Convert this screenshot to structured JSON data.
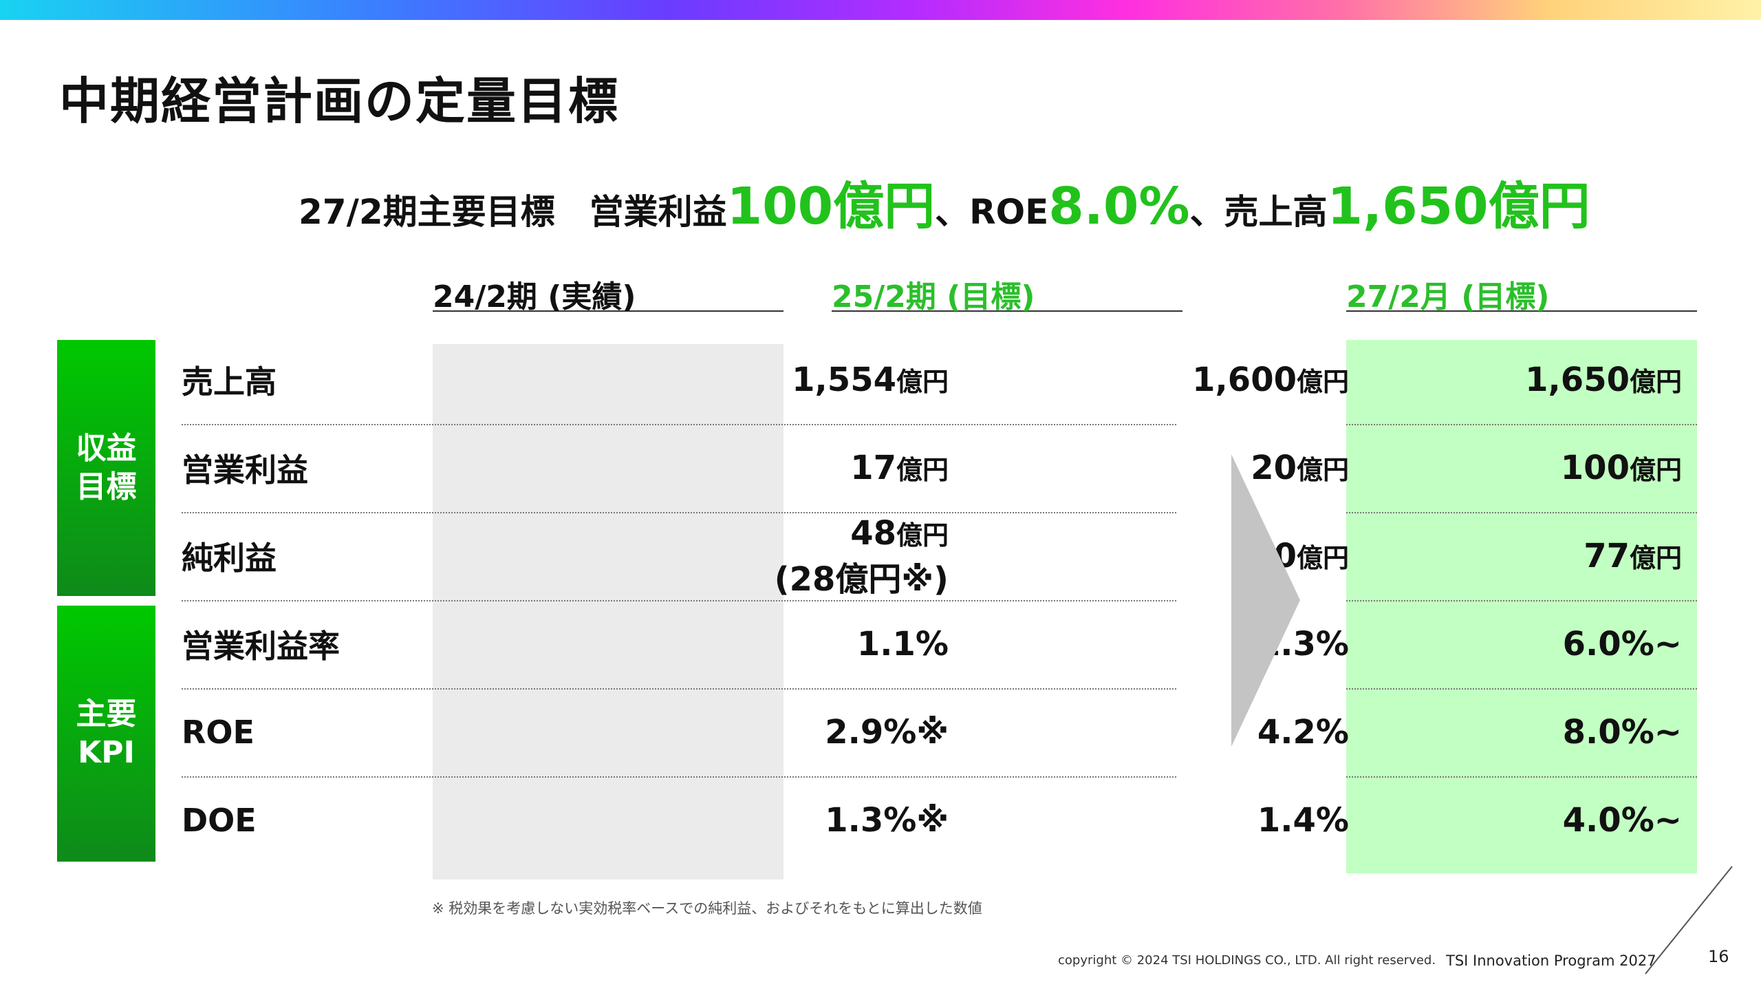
{
  "title": "中期経営計画の定量目標",
  "headline": {
    "part1": "27/2期主要目標　営業利益",
    "op_profit": "100億円",
    "sep1": "、ROE",
    "roe": "8.0%",
    "sep2": "、売上高",
    "sales": "1,650億円"
  },
  "columns": {
    "actual": "24/2期 (実績)",
    "target25": "25/2期 (目標)",
    "target27": "27/2月 (目標)"
  },
  "groups": {
    "revenue": [
      "収益",
      "目標"
    ],
    "kpi": [
      "主要",
      "KPI"
    ]
  },
  "rows": [
    {
      "label": "売上高",
      "actual": "1,554",
      "actual_unit": "億円",
      "t25": "1,600",
      "t25_unit": "億円",
      "t27": "1,650",
      "t27_unit": "億円"
    },
    {
      "label": "営業利益",
      "actual": "17",
      "actual_unit": "億円",
      "t25": "20",
      "t25_unit": "億円",
      "t27": "100",
      "t27_unit": "億円"
    },
    {
      "label": "純利益",
      "actual": "48",
      "actual_unit": "億円",
      "actual_note": "(28億円※)",
      "t25": "40",
      "t25_unit": "億円",
      "t27": "77",
      "t27_unit": "億円"
    },
    {
      "label": "営業利益率",
      "actual": "1.1%",
      "actual_unit": "",
      "t25": "1.3%",
      "t25_unit": "",
      "t27": "6.0%~",
      "t27_unit": ""
    },
    {
      "label": "ROE",
      "actual": "2.9%※",
      "actual_unit": "",
      "t25": "4.2%",
      "t25_unit": "",
      "t27": "8.0%~",
      "t27_unit": ""
    },
    {
      "label": "DOE",
      "actual": "1.3%※",
      "actual_unit": "",
      "t25": "1.4%",
      "t25_unit": "",
      "t27": "4.0%~",
      "t27_unit": ""
    }
  ],
  "footnote": "※ 税効果を考慮しない実効税率ベースでの純利益、およびそれをもとに算出した数値",
  "footer": {
    "copyright": "copyright © 2024 TSI HOLDINGS CO., LTD. All right reserved.",
    "program": "TSI Innovation Program 2027",
    "page": "16"
  },
  "colors": {
    "accent_green": "#22c21c",
    "target_bg": "#c2ffc2",
    "actual_bg": "#ebebeb",
    "arrow": "#c4c4c4"
  }
}
